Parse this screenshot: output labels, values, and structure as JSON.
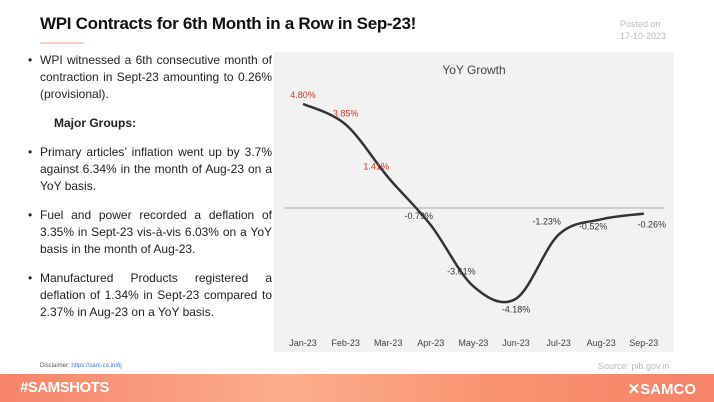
{
  "title": "WPI Contracts for 6th Month in a Row in Sep-23!",
  "posted_label": "Posted on",
  "posted_date": "17-10-2023",
  "bullets": [
    "WPI witnessed a 6th consecutive month of contraction in Sept-23 amounting to 0.26% (provisional)."
  ],
  "groups_heading": "Major Groups:",
  "group_bullets": [
    "Primary articles’ inflation went up by 3.7% against 6.34% in the month of Aug-23 on a YoY basis.",
    "Fuel and power recorded a deflation of 3.35% in Sept-23 vis-à-vis 6.03% on a YoY basis in the month of Aug-23.",
    "Manufactured Products registered a deflation of 1.34% in Sept-23 compared to 2.37% in Aug-23 on a YoY basis."
  ],
  "disclaimer_label": "Disclaimer:",
  "disclaimer_link": "https://sam-co.in/6j",
  "source": "Source:  pib.gov.in",
  "footer_tag": "#SAMSHOTS",
  "logo": "SAMCO",
  "chart_data": {
    "type": "line",
    "title": "YoY Growth",
    "categories": [
      "Jan-23",
      "Feb-23",
      "Mar-23",
      "Apr-23",
      "May-23",
      "Jun-23",
      "Jul-23",
      "Aug-23",
      "Sep-23"
    ],
    "values": [
      4.8,
      3.85,
      1.41,
      -0.79,
      -3.61,
      -4.18,
      -1.23,
      -0.52,
      -0.26
    ],
    "labels": [
      "4.80%",
      "3.85%",
      "1.41%",
      "-0.79%",
      "-3.61%",
      "-4.18%",
      "-1.23%",
      "-0.52%",
      "-0.26%"
    ],
    "ylim": [
      -4.6,
      5.3
    ],
    "smooth": true,
    "grid": false,
    "colors": {
      "line": "#333333",
      "positive_label": "#c0392b",
      "negative_label": "#333333",
      "background": "#f2f2f2"
    }
  }
}
